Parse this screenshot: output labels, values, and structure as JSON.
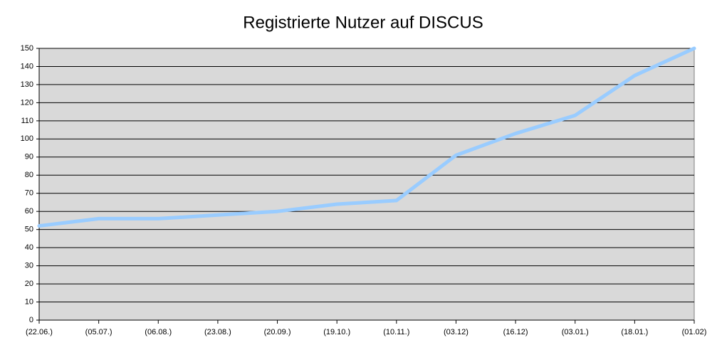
{
  "chart_data": {
    "type": "line",
    "title": "Registrierte Nutzer auf DISCUS",
    "categories": [
      "(22.06.)",
      "(05.07.)",
      "(06.08.)",
      "(23.08.)",
      "(20.09.)",
      "(19.10.)",
      "(10.11.)",
      "(03.12)",
      "(16.12)",
      "(03.01.)",
      "(18.01.)",
      "(01.02)"
    ],
    "series": [
      {
        "name": "Registrierte Nutzer",
        "color": "#99ccff",
        "values": [
          52,
          56,
          56,
          58,
          60,
          64,
          66,
          91,
          103,
          113,
          135,
          150
        ]
      }
    ],
    "ylim": [
      0,
      150
    ],
    "yticks": [
      0,
      10,
      20,
      30,
      40,
      50,
      60,
      70,
      80,
      90,
      100,
      110,
      120,
      130,
      140,
      150
    ],
    "grid": true
  }
}
